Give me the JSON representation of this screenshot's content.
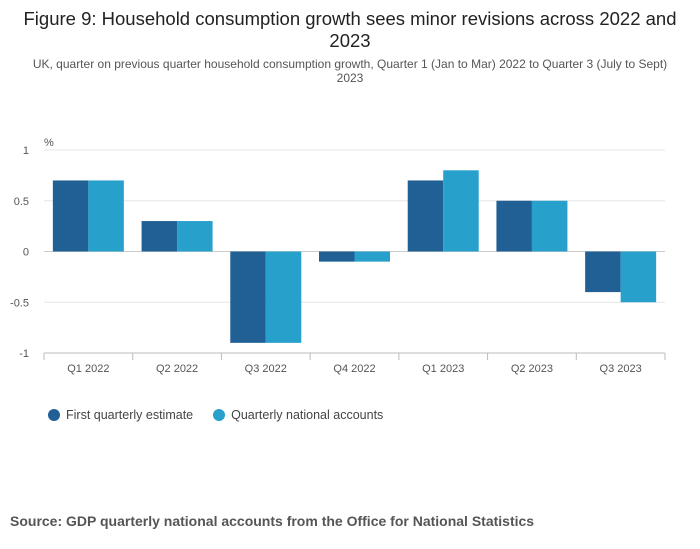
{
  "chart_data": {
    "type": "bar",
    "title": "Figure 9: Household consumption growth sees minor revisions across 2022 and 2023",
    "subtitle": "UK, quarter on previous quarter household consumption growth, Quarter 1 (Jan to Mar) 2022 to Quarter 3 (July to Sept) 2023",
    "ylabel": "%",
    "xlabel": "",
    "ylim": [
      -1,
      1
    ],
    "yticks": [
      1,
      0.5,
      0,
      -0.5,
      -1
    ],
    "ytick_labels": [
      "1",
      "0.5",
      "0",
      "-0.5",
      "-1"
    ],
    "categories": [
      "Q1 2022",
      "Q2 2022",
      "Q3 2022",
      "Q4 2022",
      "Q1 2023",
      "Q2 2023",
      "Q3 2023"
    ],
    "series": [
      {
        "name": "First quarterly estimate",
        "color": "#206095",
        "values": [
          0.7,
          0.3,
          -0.9,
          -0.1,
          0.7,
          0.5,
          -0.4
        ]
      },
      {
        "name": "Quarterly national accounts",
        "color": "#27a0cc",
        "values": [
          0.7,
          0.3,
          -0.9,
          -0.1,
          0.8,
          0.5,
          -0.5
        ]
      }
    ],
    "grid": true,
    "legend_position": "bottom-left"
  },
  "source": "Source: GDP quarterly national accounts from the Office for National Statistics"
}
